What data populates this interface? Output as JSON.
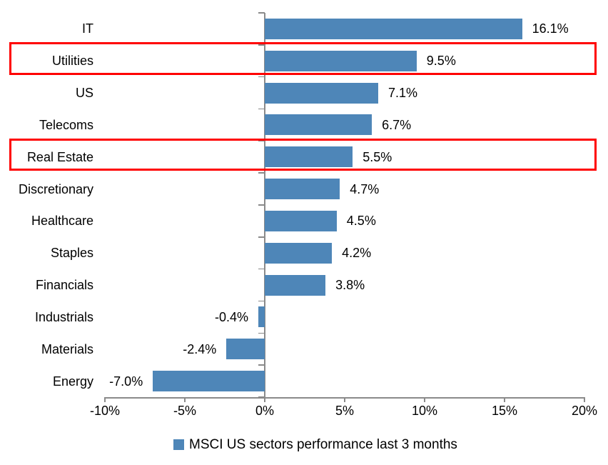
{
  "chart_data": {
    "type": "bar",
    "orientation": "horizontal",
    "title": "",
    "legend": "MSCI US sectors performance last 3 months",
    "legend_position": "bottom",
    "grid": false,
    "categories": [
      "IT",
      "Utilities",
      "US",
      "Telecoms",
      "Real Estate",
      "Discretionary",
      "Healthcare",
      "Staples",
      "Financials",
      "Industrials",
      "Materials",
      "Energy"
    ],
    "values": [
      16.1,
      9.5,
      7.1,
      6.7,
      5.5,
      4.7,
      4.5,
      4.2,
      3.8,
      -0.4,
      -2.4,
      -7.0
    ],
    "value_labels": [
      "16.1%",
      "9.5%",
      "7.1%",
      "6.7%",
      "5.5%",
      "4.7%",
      "4.5%",
      "4.2%",
      "3.8%",
      "-0.4%",
      "-2.4%",
      "-7.0%"
    ],
    "xlim": [
      -10,
      20
    ],
    "x_tick_values": [
      -10,
      -5,
      0,
      5,
      10,
      15,
      20
    ],
    "x_tick_labels": [
      "-10%",
      "-5%",
      "0%",
      "5%",
      "10%",
      "15%",
      "20%"
    ],
    "bar_color": "#4e86b8",
    "axis_color": "#8a8a8a",
    "text_color": "#000000",
    "highlight_color": "#ff0000",
    "highlighted_categories": [
      "Utilities",
      "Real Estate"
    ]
  }
}
